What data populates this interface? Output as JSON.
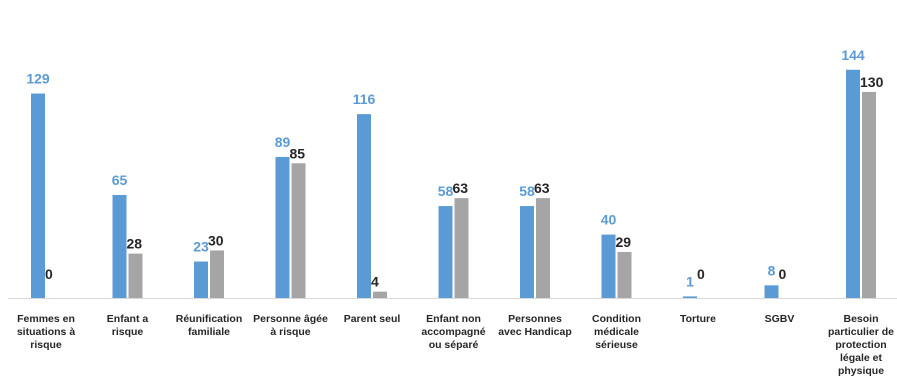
{
  "chart_data": {
    "type": "bar",
    "title": "",
    "xlabel": "",
    "ylabel": "",
    "ylim": [
      0,
      150
    ],
    "grid": false,
    "legend": "none",
    "categories": [
      [
        "Femmes en",
        "situations à",
        "risque"
      ],
      [
        "Enfant a",
        "risque"
      ],
      [
        "Réunification",
        "familiale"
      ],
      [
        "Personne âgée",
        "à risque"
      ],
      [
        "Parent seul"
      ],
      [
        "Enfant non",
        "accompagné",
        "ou séparé"
      ],
      [
        "Personnes",
        "avec Handicap"
      ],
      [
        "Condition",
        "médicale",
        "sérieuse"
      ],
      [
        "Torture"
      ],
      [
        "SGBV"
      ],
      [
        "Besoin",
        "particulier de",
        "protection",
        "légale et",
        "physique"
      ]
    ],
    "series": [
      {
        "values": [
          129,
          65,
          23,
          89,
          116,
          58,
          58,
          40,
          1,
          8,
          144
        ],
        "color": "#5B9BD5",
        "label_color": "#5B9BD5"
      },
      {
        "values": [
          0,
          28,
          30,
          85,
          4,
          63,
          63,
          29,
          0,
          0,
          130
        ],
        "color": "#A5A5A5",
        "label_color": "#262626"
      }
    ]
  },
  "colors": {
    "axis": "#D9D9D9",
    "category_text": "#262626"
  }
}
